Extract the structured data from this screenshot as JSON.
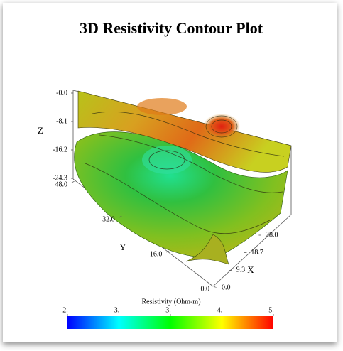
{
  "chart_data": {
    "type": "surface3d",
    "title": "3D Resistivity Contour Plot",
    "xlabel": "X",
    "ylabel": "Y",
    "zlabel": "Z",
    "xlim": [
      0,
      28
    ],
    "ylim": [
      0,
      48
    ],
    "zlim": [
      -24.3,
      0
    ],
    "xticks": [
      {
        "value": 0,
        "label": "0.0"
      },
      {
        "value": 9.3,
        "label": "9.3"
      },
      {
        "value": 18.7,
        "label": "18.7"
      },
      {
        "value": 28,
        "label": "28.0"
      }
    ],
    "yticks": [
      {
        "value": 0,
        "label": "0.0"
      },
      {
        "value": 16,
        "label": "16.0"
      },
      {
        "value": 32,
        "label": "32.0"
      },
      {
        "value": 48,
        "label": "48.0"
      }
    ],
    "zticks": [
      {
        "value": 0,
        "label": "-0.0"
      },
      {
        "value": -8.1,
        "label": "-8.1"
      },
      {
        "value": -16.2,
        "label": "-16.2"
      },
      {
        "value": -24.3,
        "label": "-24.3"
      }
    ],
    "colorbar_label": "Resistivity (Ohm-m)",
    "clim": [
      2.0,
      4.8
    ],
    "cticks": [
      {
        "value": 2.0,
        "label": "2."
      },
      {
        "value": 2.7,
        "label": "3."
      },
      {
        "value": 3.4,
        "label": "3."
      },
      {
        "value": 4.1,
        "label": "4."
      },
      {
        "value": 4.8,
        "label": "5."
      }
    ],
    "colormap": [
      "#0000ff",
      "#00ffff",
      "#00ff00",
      "#ffff00",
      "#ff0000"
    ]
  }
}
